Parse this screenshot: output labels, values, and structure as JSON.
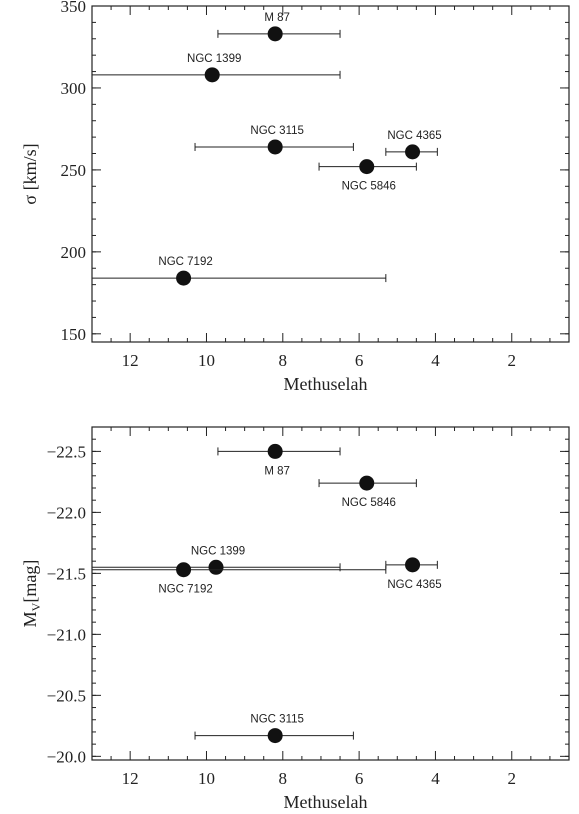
{
  "chart_data": [
    {
      "type": "scatter",
      "xlabel": "Methuselah",
      "ylabel": "σ [km/s]",
      "xlim": [
        13,
        0.5
      ],
      "ylim": [
        145,
        350
      ],
      "xticks": [
        12,
        10,
        8,
        6,
        4,
        2
      ],
      "xtick_labels": [
        "12",
        "10",
        "8",
        "6",
        "4",
        "2"
      ],
      "yticks": [
        150,
        200,
        250,
        300,
        350
      ],
      "ytick_labels": [
        "150",
        "200",
        "250",
        "300",
        "350"
      ],
      "grid": false,
      "points": [
        {
          "name": "M 87",
          "x": 8.2,
          "y": 333,
          "xerr": [
            6.5,
            9.7
          ],
          "label_pos": "above"
        },
        {
          "name": "NGC 1399",
          "x": 9.85,
          "y": 308,
          "xerr": [
            6.5,
            13.0
          ],
          "label_pos": "above"
        },
        {
          "name": "NGC 3115",
          "x": 8.2,
          "y": 264,
          "xerr": [
            6.15,
            10.3
          ],
          "label_pos": "above"
        },
        {
          "name": "NGC 5846",
          "x": 5.8,
          "y": 252,
          "xerr": [
            4.5,
            7.05
          ],
          "label_pos": "below"
        },
        {
          "name": "NGC 4365",
          "x": 4.6,
          "y": 261,
          "xerr": [
            3.95,
            5.3
          ],
          "label_pos": "above"
        },
        {
          "name": "NGC 7192",
          "x": 10.6,
          "y": 184,
          "xerr": [
            5.3,
            13.0
          ],
          "label_pos": "above"
        }
      ]
    },
    {
      "type": "scatter",
      "xlabel": "Methuselah",
      "ylabel": "Mv[mag]",
      "ylabel_main": "M",
      "ylabel_sub": "V",
      "ylabel_rest": "[mag]",
      "xlim": [
        13,
        0.5
      ],
      "ylim": [
        -19.97,
        -22.7
      ],
      "xticks": [
        12,
        10,
        8,
        6,
        4,
        2
      ],
      "xtick_labels": [
        "12",
        "10",
        "8",
        "6",
        "4",
        "2"
      ],
      "yticks": [
        -20.0,
        -20.5,
        -21.0,
        -21.5,
        -22.0,
        -22.5
      ],
      "ytick_labels": [
        "−20.0",
        "−20.5",
        "−21.0",
        "−21.5",
        "−22.0",
        "−22.5"
      ],
      "grid": false,
      "points": [
        {
          "name": "M 87",
          "x": 8.2,
          "y": -22.5,
          "xerr": [
            6.5,
            9.7
          ],
          "label_pos": "below"
        },
        {
          "name": "NGC 5846",
          "x": 5.8,
          "y": -22.24,
          "xerr": [
            4.5,
            7.05
          ],
          "label_pos": "below"
        },
        {
          "name": "NGC 1399",
          "x": 9.75,
          "y": -21.55,
          "xerr": [
            6.5,
            13.0
          ],
          "label_pos": "above"
        },
        {
          "name": "NGC 7192",
          "x": 10.6,
          "y": -21.53,
          "xerr": [
            5.3,
            13.0
          ],
          "label_pos": "below"
        },
        {
          "name": "NGC 4365",
          "x": 4.6,
          "y": -21.57,
          "xerr": [
            3.95,
            5.3
          ],
          "label_pos": "below"
        },
        {
          "name": "NGC 3115",
          "x": 8.2,
          "y": -20.17,
          "xerr": [
            6.15,
            10.3
          ],
          "label_pos": "above"
        }
      ]
    }
  ]
}
